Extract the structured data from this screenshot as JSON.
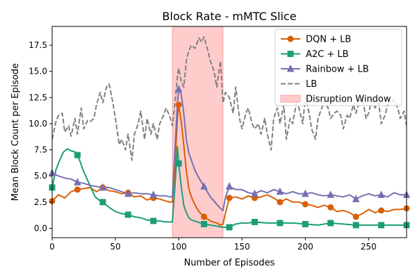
{
  "chart_data": {
    "type": "line",
    "title": "Block Rate - mMTC Slice",
    "xlabel": "Number of Episodes",
    "ylabel": "Mean Block Count per Episode",
    "xlim": [
      0,
      280
    ],
    "ylim": [
      -0.9,
      19.3
    ],
    "x_ticks": [
      0,
      50,
      100,
      150,
      200,
      250
    ],
    "y_ticks": [
      0.0,
      2.5,
      5.0,
      7.5,
      10.0,
      12.5,
      15.0,
      17.5
    ],
    "x_tick_labels": [
      "0",
      "50",
      "100",
      "150",
      "200",
      "250"
    ],
    "y_tick_labels": [
      "0.0",
      "2.5",
      "5.0",
      "7.5",
      "10.0",
      "12.5",
      "15.0",
      "17.5"
    ],
    "grid": false,
    "legend_position": "top-right",
    "disruption_window": {
      "label": "Disruption Window",
      "start": 95,
      "end": 135,
      "color": "#ff9999"
    },
    "series": [
      {
        "name": "DQN + LB",
        "color": "#d95f02",
        "marker": "circle",
        "dash": "solid",
        "x": [
          0,
          5,
          10,
          15,
          20,
          25,
          30,
          35,
          40,
          45,
          50,
          55,
          60,
          65,
          70,
          75,
          80,
          85,
          90,
          93,
          95,
          97,
          99,
          100,
          102,
          104,
          106,
          108,
          110,
          113,
          116,
          120,
          125,
          130,
          133,
          135,
          137,
          140,
          145,
          150,
          155,
          160,
          165,
          170,
          175,
          180,
          185,
          190,
          195,
          200,
          205,
          210,
          215,
          220,
          225,
          230,
          235,
          240,
          245,
          250,
          255,
          260,
          265,
          270,
          275,
          280
        ],
        "y": [
          2.6,
          3.2,
          2.9,
          3.5,
          3.7,
          3.8,
          3.9,
          3.5,
          3.9,
          3.6,
          3.5,
          3.3,
          3.4,
          3.0,
          3.1,
          2.7,
          2.9,
          2.8,
          2.6,
          2.5,
          2.5,
          6.0,
          10.5,
          11.8,
          10.2,
          8.0,
          5.5,
          3.8,
          3.0,
          2.2,
          1.6,
          1.1,
          0.7,
          0.5,
          0.3,
          0.4,
          1.5,
          2.9,
          3.0,
          2.8,
          3.1,
          2.9,
          3.0,
          3.2,
          2.9,
          2.5,
          2.8,
          2.5,
          2.5,
          2.3,
          2.2,
          2.0,
          2.2,
          2.0,
          1.6,
          1.7,
          1.5,
          1.1,
          1.4,
          1.8,
          1.5,
          1.7,
          1.6,
          1.8,
          1.8,
          1.9
        ]
      },
      {
        "name": "A2C + LB",
        "color": "#1b9e77",
        "marker": "square",
        "dash": "solid",
        "x": [
          0,
          3,
          6,
          9,
          12,
          15,
          18,
          20,
          22,
          25,
          28,
          31,
          34,
          37,
          40,
          45,
          50,
          55,
          60,
          65,
          70,
          75,
          80,
          85,
          90,
          93,
          95,
          97,
          99,
          100,
          102,
          104,
          106,
          108,
          110,
          115,
          120,
          125,
          130,
          135,
          140,
          145,
          150,
          155,
          160,
          170,
          180,
          190,
          200,
          210,
          220,
          230,
          240,
          250,
          260,
          270,
          280
        ],
        "y": [
          3.9,
          5.6,
          6.5,
          7.3,
          7.6,
          7.4,
          7.3,
          7.0,
          6.4,
          5.4,
          4.6,
          3.8,
          3.0,
          2.7,
          2.5,
          2.0,
          1.6,
          1.4,
          1.3,
          1.1,
          1.0,
          0.8,
          0.7,
          0.7,
          0.6,
          0.6,
          0.6,
          4.0,
          7.8,
          6.2,
          4.0,
          2.2,
          1.5,
          1.0,
          0.8,
          0.6,
          0.4,
          0.3,
          0.2,
          0.1,
          0.1,
          0.4,
          0.5,
          0.5,
          0.6,
          0.5,
          0.5,
          0.5,
          0.4,
          0.3,
          0.5,
          0.4,
          0.3,
          0.3,
          0.3,
          0.3,
          0.3
        ]
      },
      {
        "name": "Rainbow + LB",
        "color": "#7570b3",
        "marker": "triangle",
        "dash": "solid",
        "x": [
          0,
          5,
          10,
          15,
          20,
          25,
          30,
          35,
          40,
          45,
          50,
          55,
          60,
          65,
          70,
          75,
          80,
          85,
          90,
          93,
          95,
          97,
          99,
          100,
          102,
          104,
          106,
          108,
          110,
          113,
          116,
          120,
          125,
          130,
          133,
          135,
          137,
          140,
          145,
          150,
          155,
          160,
          165,
          170,
          175,
          180,
          185,
          190,
          195,
          200,
          205,
          210,
          215,
          220,
          225,
          230,
          235,
          240,
          245,
          250,
          255,
          260,
          265,
          270,
          275,
          280
        ],
        "y": [
          5.3,
          5.0,
          4.8,
          4.7,
          4.4,
          4.3,
          4.1,
          4.0,
          3.9,
          3.9,
          3.7,
          3.5,
          3.3,
          3.4,
          3.3,
          3.3,
          3.2,
          3.1,
          3.1,
          3.0,
          3.0,
          7.5,
          12.0,
          13.3,
          12.8,
          11.0,
          8.5,
          7.2,
          6.5,
          5.5,
          4.8,
          4.0,
          3.0,
          2.3,
          1.9,
          1.7,
          3.0,
          4.0,
          3.7,
          3.7,
          3.4,
          3.3,
          3.6,
          3.4,
          3.7,
          3.5,
          3.3,
          3.5,
          3.3,
          3.3,
          3.4,
          3.2,
          3.1,
          3.2,
          3.1,
          3.0,
          3.2,
          2.8,
          3.1,
          3.3,
          3.1,
          3.2,
          3.0,
          3.4,
          3.2,
          3.2
        ]
      },
      {
        "name": "LB",
        "color": "#808080",
        "marker": "none",
        "dash": "dashed",
        "x": [
          0,
          3,
          5,
          8,
          10,
          13,
          15,
          18,
          20,
          23,
          25,
          28,
          30,
          33,
          35,
          38,
          40,
          43,
          45,
          48,
          50,
          53,
          55,
          58,
          60,
          63,
          65,
          68,
          70,
          73,
          75,
          78,
          80,
          83,
          85,
          88,
          90,
          93,
          95,
          97,
          99,
          100,
          102,
          104,
          106,
          108,
          110,
          113,
          116,
          118,
          120,
          123,
          125,
          128,
          130,
          133,
          135,
          137,
          140,
          143,
          145,
          148,
          150,
          153,
          155,
          158,
          160,
          163,
          165,
          168,
          170,
          173,
          175,
          178,
          180,
          183,
          185,
          188,
          190,
          193,
          195,
          198,
          200,
          203,
          205,
          208,
          210,
          213,
          215,
          218,
          220,
          223,
          225,
          228,
          230,
          233,
          235,
          238,
          240,
          243,
          245,
          248,
          250,
          253,
          255,
          258,
          260,
          263,
          265,
          268,
          270,
          273,
          275,
          278,
          280
        ],
        "y": [
          8.5,
          10.2,
          10.8,
          11.0,
          9.2,
          9.8,
          8.8,
          10.5,
          9.0,
          11.5,
          9.5,
          10.3,
          10.2,
          10.5,
          11.8,
          13.0,
          12.0,
          13.5,
          13.8,
          12.0,
          10.5,
          8.0,
          8.5,
          7.5,
          9.0,
          6.5,
          9.0,
          10.0,
          11.2,
          8.5,
          10.5,
          9.0,
          10.0,
          8.5,
          10.0,
          10.8,
          11.5,
          10.7,
          9.8,
          12.0,
          14.5,
          15.3,
          14.0,
          13.5,
          16.0,
          17.0,
          17.5,
          17.2,
          18.2,
          17.8,
          18.3,
          17.0,
          16.0,
          15.0,
          13.5,
          16.0,
          12.0,
          13.0,
          12.5,
          11.0,
          13.5,
          10.5,
          9.5,
          11.0,
          11.5,
          10.0,
          9.5,
          10.0,
          9.0,
          10.5,
          9.0,
          7.5,
          10.5,
          11.5,
          10.0,
          11.8,
          8.5,
          10.5,
          10.0,
          12.0,
          11.5,
          10.0,
          12.5,
          11.0,
          9.5,
          8.5,
          10.5,
          11.5,
          12.2,
          11.5,
          10.5,
          11.0,
          11.2,
          10.8,
          9.5,
          10.8,
          10.5,
          11.8,
          11.0,
          12.2,
          12.5,
          10.5,
          11.0,
          12.5,
          11.5,
          12.0,
          10.0,
          10.8,
          11.8,
          12.0,
          12.3,
          11.5,
          10.5,
          11.2,
          9.8
        ]
      }
    ],
    "markers": [
      {
        "series": 0,
        "x": [
          0,
          20,
          40,
          60,
          80,
          100,
          120,
          140,
          160,
          180,
          200,
          220,
          240,
          260,
          280
        ]
      },
      {
        "series": 1,
        "x": [
          0,
          20,
          40,
          60,
          80,
          100,
          120,
          140,
          160,
          180,
          200,
          220,
          240,
          260,
          280
        ]
      },
      {
        "series": 2,
        "x": [
          0,
          20,
          40,
          60,
          80,
          100,
          120,
          140,
          160,
          180,
          200,
          220,
          240,
          260,
          280
        ]
      }
    ]
  }
}
